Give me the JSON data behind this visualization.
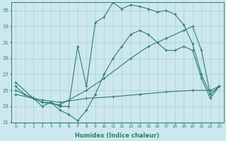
{
  "xlabel": "Humidex (Indice chaleur)",
  "bg_color": "#cce8ee",
  "line_color": "#2e7d6e",
  "grid_color": "#aacdd6",
  "xlim": [
    -0.5,
    23.5
  ],
  "ylim": [
    21,
    36
  ],
  "xticks": [
    0,
    1,
    2,
    3,
    4,
    5,
    6,
    7,
    8,
    9,
    10,
    11,
    12,
    13,
    14,
    15,
    16,
    17,
    18,
    19,
    20,
    21,
    22,
    23
  ],
  "yticks": [
    21,
    23,
    25,
    27,
    29,
    31,
    33,
    35
  ],
  "series": [
    {
      "x": [
        0,
        1,
        2,
        3,
        4,
        5,
        6,
        7,
        8,
        9,
        10,
        11,
        12,
        13,
        14,
        15,
        16,
        17,
        18,
        19,
        20,
        21,
        22,
        23
      ],
      "y": [
        25.5,
        24.5,
        24,
        23,
        23.5,
        22.5,
        22,
        21.2,
        22.5,
        24.5,
        27,
        29,
        30.5,
        32,
        32.5,
        32,
        31,
        30,
        30,
        30.5,
        30,
        26.5,
        24,
        25.5
      ]
    },
    {
      "x": [
        0,
        2,
        3,
        4,
        5,
        6,
        7,
        8,
        9,
        10,
        11,
        12,
        13,
        14,
        15,
        16,
        17,
        18,
        19,
        20,
        21,
        22,
        23
      ],
      "y": [
        26,
        24,
        23.5,
        23.5,
        23,
        23,
        30.5,
        25.5,
        33.5,
        34.2,
        36,
        35.2,
        35.7,
        35.5,
        35.2,
        34.8,
        35,
        34.5,
        33.2,
        30.8,
        27,
        24.5,
        25.5
      ]
    },
    {
      "x": [
        0,
        2,
        3,
        5,
        8,
        10,
        13,
        15,
        17,
        19,
        20,
        21,
        22,
        23
      ],
      "y": [
        25,
        24,
        23.5,
        23.2,
        25,
        26.5,
        29,
        30.5,
        31.5,
        32.5,
        33,
        30,
        24.5,
        25.5
      ]
    },
    {
      "x": [
        0,
        2,
        3,
        5,
        8,
        11,
        14,
        17,
        20,
        22,
        23
      ],
      "y": [
        24.5,
        24,
        23.8,
        23.5,
        24,
        24.2,
        24.5,
        24.8,
        25,
        25,
        25.5
      ]
    }
  ]
}
